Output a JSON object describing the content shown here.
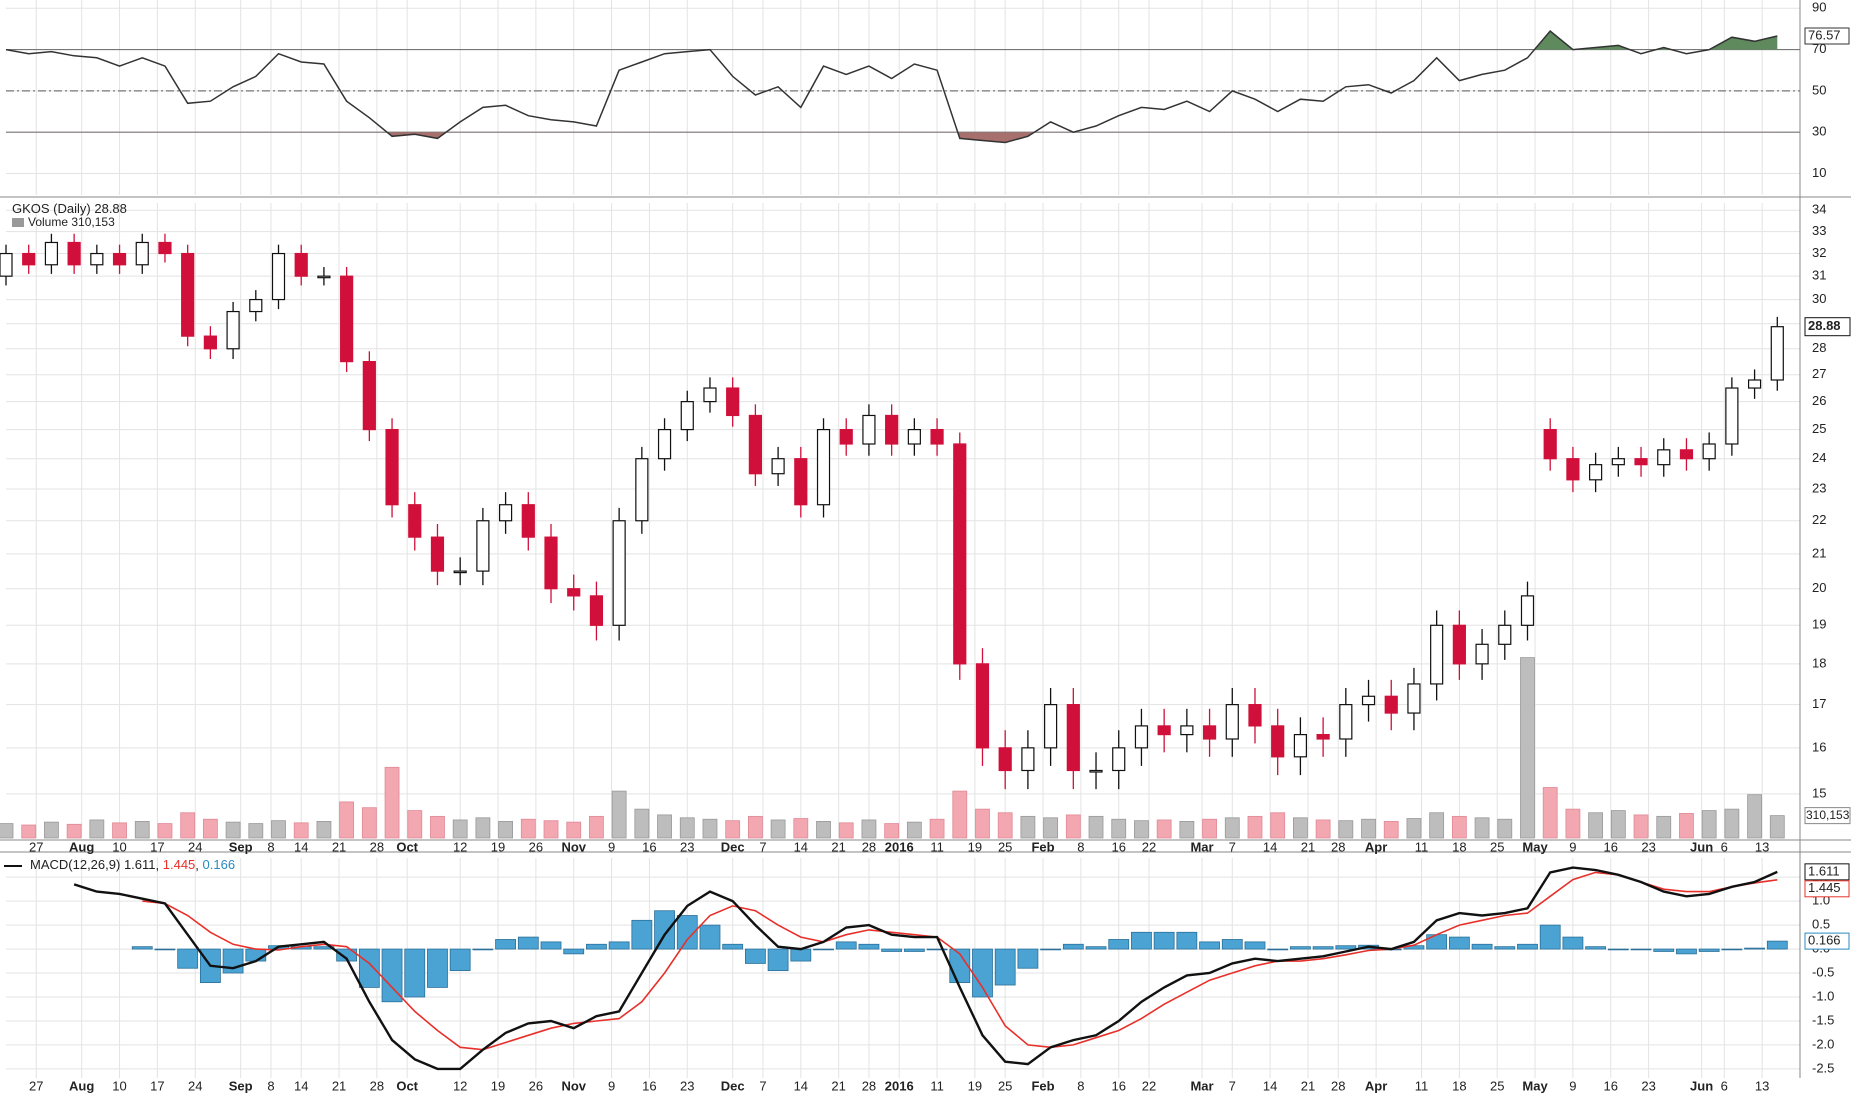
{
  "chart_data": {
    "type": "candlestick",
    "x": [
      0,
      3,
      6,
      9,
      12,
      15,
      18,
      21,
      24,
      27,
      30,
      33,
      36,
      39,
      42,
      45,
      48,
      51,
      54,
      57,
      60,
      63,
      66,
      69,
      72,
      75,
      78,
      81,
      84,
      87,
      90,
      93,
      96,
      99,
      102,
      105,
      108,
      111,
      114,
      117,
      120,
      123,
      126,
      129,
      132,
      135,
      138,
      141,
      144,
      147,
      150,
      153,
      156,
      159,
      162,
      165,
      168,
      171,
      174,
      177,
      180,
      183,
      186,
      189,
      192,
      195,
      198,
      201,
      204,
      207,
      210,
      213,
      216,
      219,
      222,
      225,
      228,
      231,
      234
    ],
    "xlim": [
      0,
      237
    ],
    "xticks": [
      {
        "value": 4,
        "label": "27"
      },
      {
        "value": 10,
        "label": "Aug"
      },
      {
        "value": 15,
        "label": "10"
      },
      {
        "value": 20,
        "label": "17"
      },
      {
        "value": 25,
        "label": "24"
      },
      {
        "value": 31,
        "label": "Sep"
      },
      {
        "value": 35,
        "label": "8"
      },
      {
        "value": 39,
        "label": "14"
      },
      {
        "value": 44,
        "label": "21"
      },
      {
        "value": 49,
        "label": "28"
      },
      {
        "value": 53,
        "label": "Oct"
      },
      {
        "value": 60,
        "label": "12"
      },
      {
        "value": 65,
        "label": "19"
      },
      {
        "value": 70,
        "label": "26"
      },
      {
        "value": 75,
        "label": "Nov"
      },
      {
        "value": 80,
        "label": "9"
      },
      {
        "value": 85,
        "label": "16"
      },
      {
        "value": 90,
        "label": "23"
      },
      {
        "value": 96,
        "label": "Dec"
      },
      {
        "value": 100,
        "label": "7"
      },
      {
        "value": 105,
        "label": "14"
      },
      {
        "value": 110,
        "label": "21"
      },
      {
        "value": 114,
        "label": "28"
      },
      {
        "value": 118,
        "label": "2016"
      },
      {
        "value": 123,
        "label": "11"
      },
      {
        "value": 128,
        "label": "19"
      },
      {
        "value": 132,
        "label": "25"
      },
      {
        "value": 137,
        "label": "Feb"
      },
      {
        "value": 142,
        "label": "8"
      },
      {
        "value": 147,
        "label": "16"
      },
      {
        "value": 151,
        "label": "22"
      },
      {
        "value": 158,
        "label": "Mar"
      },
      {
        "value": 162,
        "label": "7"
      },
      {
        "value": 167,
        "label": "14"
      },
      {
        "value": 172,
        "label": "21"
      },
      {
        "value": 176,
        "label": "28"
      },
      {
        "value": 181,
        "label": "Apr"
      },
      {
        "value": 187,
        "label": "11"
      },
      {
        "value": 192,
        "label": "18"
      },
      {
        "value": 197,
        "label": "25"
      },
      {
        "value": 202,
        "label": "May"
      },
      {
        "value": 207,
        "label": "9"
      },
      {
        "value": 212,
        "label": "16"
      },
      {
        "value": 217,
        "label": "23"
      },
      {
        "value": 224,
        "label": "Jun"
      },
      {
        "value": 227,
        "label": "6"
      },
      {
        "value": 232,
        "label": "13"
      }
    ],
    "grid": true,
    "title": "GKOS (Daily)",
    "log_scale": true,
    "ylim": [
      14.1,
      34.35
    ],
    "yticks": [
      15,
      16,
      17,
      18,
      19,
      20,
      21,
      22,
      23,
      24,
      25,
      26,
      27,
      28,
      29,
      30,
      31,
      32,
      33,
      34
    ],
    "series": [
      {
        "name": "GKOS (Daily)",
        "up_color": "#ffffff",
        "down_color": "#d0103a",
        "open": [
          31,
          32,
          31.5,
          32.5,
          31.5,
          32,
          31.5,
          32.5,
          32,
          28.5,
          28,
          29.5,
          30,
          32,
          31,
          31,
          27.5,
          25,
          22.5,
          21.5,
          20.5,
          20.5,
          22,
          22.5,
          21.5,
          20,
          19.8,
          19,
          22,
          24,
          25,
          26,
          26.5,
          25.5,
          23.5,
          24,
          22.5,
          25,
          24.5,
          25.5,
          24.5,
          25,
          24.5,
          18,
          16,
          15.5,
          16,
          17,
          15.5,
          15.5,
          16,
          16.5,
          16.3,
          16.5,
          16.2,
          17,
          16.5,
          15.8,
          16.3,
          16.2,
          17,
          17.2,
          16.8,
          17.5,
          19,
          18,
          18.5,
          19,
          25,
          24,
          23.3,
          23.8,
          24,
          23.8,
          24.3,
          24,
          24.5,
          26.5,
          26.8
        ],
        "high": [
          32.4,
          32.4,
          32.9,
          32.9,
          32.4,
          32.4,
          32.9,
          32.9,
          32.4,
          28.9,
          29.9,
          30.4,
          32.4,
          32.4,
          31.4,
          31.4,
          27.9,
          25.4,
          22.9,
          21.9,
          20.9,
          22.4,
          22.9,
          22.9,
          21.9,
          20.4,
          20.2,
          22.4,
          24.4,
          25.4,
          26.4,
          26.9,
          26.9,
          25.9,
          24.4,
          24.4,
          25.4,
          25.4,
          25.9,
          25.9,
          25.4,
          25.4,
          24.9,
          18.4,
          16.4,
          16.4,
          17.4,
          17.4,
          15.9,
          16.4,
          16.9,
          16.9,
          16.9,
          16.9,
          17.4,
          17.4,
          16.9,
          16.7,
          16.7,
          17.4,
          17.6,
          17.6,
          17.9,
          19.4,
          19.4,
          18.9,
          19.4,
          20.2,
          25.4,
          24.4,
          24.2,
          24.4,
          24.4,
          24.7,
          24.7,
          24.9,
          26.9,
          27.2,
          29.28
        ],
        "low": [
          30.6,
          31.1,
          31.1,
          31.1,
          31.1,
          31.1,
          31.1,
          31.6,
          28.1,
          27.6,
          27.6,
          29.1,
          29.6,
          30.6,
          30.6,
          27.1,
          24.6,
          22.1,
          21.1,
          20.1,
          20.1,
          20.1,
          21.6,
          21.1,
          19.6,
          19.4,
          18.6,
          18.6,
          21.6,
          23.6,
          24.6,
          25.6,
          25.1,
          23.1,
          23.1,
          22.1,
          22.1,
          24.1,
          24.1,
          24.1,
          24.1,
          24.1,
          17.6,
          15.6,
          15.1,
          15.1,
          15.6,
          15.1,
          15.1,
          15.1,
          15.6,
          15.9,
          15.9,
          15.8,
          15.8,
          16.1,
          15.4,
          15.4,
          15.8,
          15.8,
          16.6,
          16.4,
          16.4,
          17.1,
          17.6,
          17.6,
          18.1,
          18.6,
          23.6,
          22.9,
          22.9,
          23.4,
          23.4,
          23.4,
          23.6,
          23.6,
          24.1,
          26.1,
          26.4
        ],
        "close": [
          32,
          31.5,
          32.5,
          31.5,
          32,
          31.5,
          32.5,
          32,
          28.5,
          28,
          29.5,
          30,
          32,
          31,
          31,
          27.5,
          25,
          22.5,
          21.5,
          20.5,
          20.5,
          22,
          22.5,
          21.5,
          20,
          19.8,
          19,
          22,
          24,
          25,
          26,
          26.5,
          25.5,
          23.5,
          24,
          22.5,
          25,
          24.5,
          25.5,
          24.5,
          25,
          24.5,
          18,
          16,
          15.5,
          16,
          17,
          15.5,
          15.5,
          16,
          16.5,
          16.3,
          16.5,
          16.2,
          17,
          16.5,
          15.8,
          16.3,
          16.2,
          17,
          17.2,
          16.8,
          17.5,
          19,
          18,
          18.5,
          19,
          19.8,
          24,
          23.3,
          23.8,
          24,
          23.8,
          24.3,
          24,
          24.5,
          26.5,
          26.8,
          28.88
        ]
      }
    ],
    "volume": {
      "name": "Volume",
      "up_color": "#bdbdbd",
      "down_color": "#f2a7b1",
      "ylim": [
        0,
        8800000
      ],
      "values": [
        200000,
        180000,
        220000,
        190000,
        250000,
        210000,
        230000,
        200000,
        350000,
        260000,
        220000,
        200000,
        240000,
        210000,
        230000,
        500000,
        420000,
        980000,
        380000,
        300000,
        250000,
        280000,
        230000,
        260000,
        240000,
        220000,
        300000,
        650000,
        400000,
        320000,
        280000,
        260000,
        240000,
        300000,
        250000,
        270000,
        230000,
        210000,
        250000,
        200000,
        220000,
        260000,
        650000,
        400000,
        350000,
        300000,
        280000,
        320000,
        300000,
        260000,
        240000,
        250000,
        230000,
        260000,
        280000,
        300000,
        350000,
        280000,
        250000,
        240000,
        260000,
        230000,
        270000,
        350000,
        300000,
        280000,
        260000,
        2500000,
        700000,
        400000,
        350000,
        380000,
        320000,
        300000,
        340000,
        380000,
        400000,
        600000,
        310153
      ],
      "value_labels": [
        null,
        null,
        null,
        null,
        null,
        null,
        null,
        null,
        null,
        null,
        null,
        null,
        null,
        null,
        null,
        null,
        null,
        null,
        null,
        null,
        null,
        null,
        null,
        null,
        null,
        null,
        null,
        null,
        null,
        null,
        null,
        null,
        null,
        null,
        null,
        null,
        null,
        null,
        null,
        null,
        null,
        null,
        null,
        null,
        null,
        null,
        null,
        null,
        null,
        null,
        null,
        null,
        null,
        null,
        null,
        null,
        null,
        null,
        null,
        null,
        null,
        null,
        null,
        null,
        null,
        null,
        null,
        null,
        null,
        null,
        null,
        null,
        null,
        null,
        null,
        null,
        null,
        null,
        "310,153"
      ]
    },
    "rsi": {
      "color": "#333333",
      "ylim": [
        -0.4,
        94
      ],
      "yticks": [
        10,
        30,
        50,
        70,
        90
      ],
      "overbought": 70,
      "oversold": 30,
      "midline": 50,
      "overbought_color": "#5e8a5e",
      "oversold_color": "#a8706c",
      "values": [
        70,
        68,
        69,
        67,
        66,
        62,
        66,
        62,
        44,
        45,
        52,
        57,
        68,
        64,
        63,
        45,
        37,
        28,
        29,
        27,
        35,
        42,
        43,
        38,
        36,
        35,
        33,
        60,
        64,
        68,
        69,
        70,
        57,
        48,
        52,
        42,
        62,
        58,
        62,
        56,
        63,
        60,
        27,
        26,
        25,
        28,
        35,
        30,
        33,
        38,
        42,
        41,
        45,
        40,
        50,
        46,
        40,
        46,
        45,
        52,
        53,
        49,
        55,
        66,
        55,
        58,
        60,
        66,
        79,
        70,
        71,
        72,
        68,
        71,
        68,
        70,
        76,
        74,
        76.57
      ]
    },
    "macd": {
      "name": "MACD(12,26,9)",
      "ylim": [
        -2.69,
        1.9
      ],
      "yticks": [
        1.5,
        {
          "value": 1,
          "label": "1.0"
        },
        0.5,
        {
          "value": 0,
          "label": "0.0"
        },
        -0.5,
        {
          "value": -1,
          "label": "-1.0"
        },
        -1.5,
        {
          "value": -2,
          "label": "-2.0"
        },
        -2.5
      ],
      "line": {
        "color": "#111111",
        "values": [
          null,
          null,
          null,
          1.35,
          1.2,
          1.15,
          1.05,
          0.95,
          0.3,
          -0.35,
          -0.4,
          -0.25,
          0.05,
          0.1,
          0.15,
          -0.2,
          -1.1,
          -1.9,
          -2.3,
          -2.5,
          -2.5,
          -2.1,
          -1.75,
          -1.55,
          -1.5,
          -1.65,
          -1.4,
          -1.3,
          -0.5,
          0.3,
          0.9,
          1.2,
          1.0,
          0.5,
          0.05,
          0.0,
          0.15,
          0.45,
          0.5,
          0.3,
          0.25,
          0.25,
          -0.8,
          -1.8,
          -2.35,
          -2.4,
          -2.05,
          -1.9,
          -1.8,
          -1.5,
          -1.1,
          -0.8,
          -0.55,
          -0.5,
          -0.3,
          -0.2,
          -0.25,
          -0.2,
          -0.15,
          -0.05,
          0.05,
          0.0,
          0.15,
          0.6,
          0.75,
          0.7,
          0.75,
          0.85,
          1.6,
          1.7,
          1.65,
          1.55,
          1.4,
          1.2,
          1.1,
          1.15,
          1.3,
          1.4,
          1.611
        ]
      },
      "signal": {
        "color": "#e8302a",
        "values": [
          null,
          null,
          null,
          null,
          null,
          null,
          1.0,
          0.95,
          0.7,
          0.35,
          0.1,
          0.0,
          -0.02,
          0.05,
          0.1,
          0.05,
          -0.3,
          -0.8,
          -1.3,
          -1.7,
          -2.05,
          -2.1,
          -1.95,
          -1.8,
          -1.65,
          -1.55,
          -1.5,
          -1.45,
          -1.1,
          -0.5,
          0.2,
          0.7,
          0.9,
          0.8,
          0.5,
          0.25,
          0.15,
          0.3,
          0.4,
          0.35,
          0.3,
          0.25,
          -0.1,
          -0.8,
          -1.6,
          -2.0,
          -2.05,
          -2.0,
          -1.85,
          -1.7,
          -1.45,
          -1.15,
          -0.9,
          -0.65,
          -0.5,
          -0.35,
          -0.25,
          -0.25,
          -0.2,
          -0.12,
          -0.03,
          0.0,
          0.08,
          0.3,
          0.5,
          0.6,
          0.7,
          0.75,
          1.1,
          1.45,
          1.6,
          1.55,
          1.4,
          1.25,
          1.2,
          1.2,
          1.3,
          1.38,
          1.445
        ]
      },
      "histogram": {
        "color": "#4ba3d3",
        "values": [
          null,
          null,
          null,
          null,
          null,
          null,
          0.05,
          0,
          -0.4,
          -0.7,
          -0.5,
          -0.25,
          0.07,
          0.05,
          0.05,
          -0.25,
          -0.8,
          -1.1,
          -1.0,
          -0.8,
          -0.45,
          0,
          0.2,
          0.25,
          0.15,
          -0.1,
          0.1,
          0.15,
          0.6,
          0.8,
          0.7,
          0.5,
          0.1,
          -0.3,
          -0.45,
          -0.25,
          0,
          0.15,
          0.1,
          -0.05,
          -0.05,
          0,
          -0.7,
          -1.0,
          -0.75,
          -0.4,
          0,
          0.1,
          0.05,
          0.2,
          0.35,
          0.35,
          0.35,
          0.15,
          0.2,
          0.15,
          0,
          0.05,
          0.05,
          0.07,
          0.08,
          0,
          0.07,
          0.3,
          0.25,
          0.1,
          0.05,
          0.1,
          0.5,
          0.25,
          0.05,
          0,
          0,
          -0.05,
          -0.1,
          -0.05,
          0,
          0.02,
          0.166
        ]
      }
    }
  }
}
